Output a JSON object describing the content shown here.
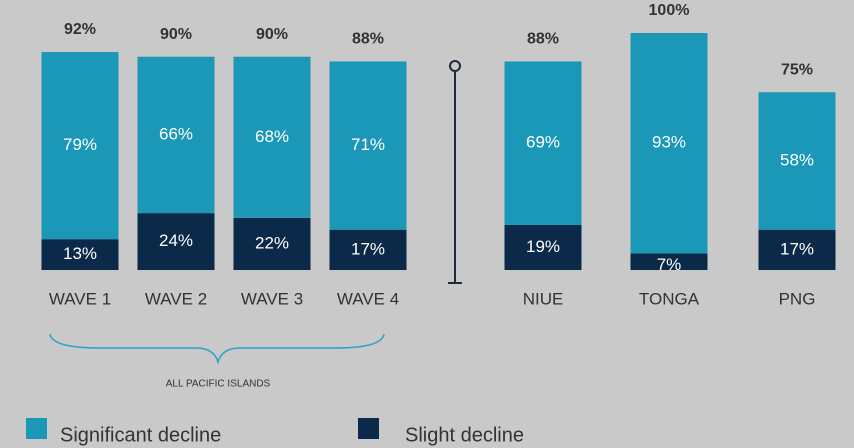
{
  "chart_data": {
    "type": "stacked_bar",
    "categories": [
      "WAVE 1",
      "WAVE 2",
      "WAVE 3",
      "WAVE 4",
      "NIUE",
      "TONGA",
      "PNG"
    ],
    "series": [
      {
        "name": "Significant decline",
        "color": "#1b97b8",
        "values": [
          79,
          66,
          68,
          71,
          69,
          93,
          58
        ],
        "value_labels": [
          "79%",
          "66%",
          "68%",
          "71%",
          "69%",
          "93%",
          "58%"
        ]
      },
      {
        "name": "Slight decline",
        "color": "#0b2948",
        "values": [
          13,
          24,
          22,
          17,
          19,
          7,
          17
        ],
        "value_labels": [
          "13%",
          "24%",
          "22%",
          "17%",
          "19%",
          "7%",
          "17%"
        ]
      }
    ],
    "totals": [
      92,
      90,
      90,
      88,
      88,
      100,
      75
    ],
    "total_labels": [
      "92%",
      "90%",
      "90%",
      "88%",
      "88%",
      "100%",
      "75%"
    ],
    "annotation": "ALL PACIFIC ISLANDS",
    "ylim": [
      0,
      100
    ]
  }
}
